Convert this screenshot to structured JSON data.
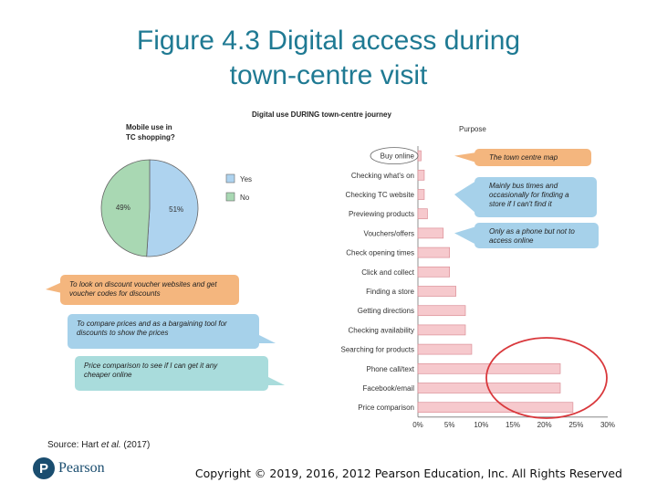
{
  "slide": {
    "title_line1": "Figure 4.3 Digital access during",
    "title_line2": "town-centre visit",
    "source_prefix": "Source: Hart ",
    "source_italic": "et al.",
    "source_suffix": " (2017)",
    "copyright": "Copyright © 2019, 2016, 2012 Pearson Education, Inc. All Rights Reserved",
    "logo_text": "Pearson",
    "logo_mark": "P"
  },
  "colors": {
    "title": "#1f7a93",
    "pie_yes": "#aed3ef",
    "pie_no": "#a9d8b3",
    "bar_fill": "#f6c9cd",
    "bar_stroke": "#dc8f97",
    "callout_orange": "#f4b67e",
    "callout_blue": "#a6d1ea",
    "callout_teal": "#a9dcdc",
    "highlight_circle": "#d9383c"
  },
  "chart_data": [
    {
      "type": "pie",
      "title": "Mobile use in TC shopping?",
      "slices": [
        {
          "label": "Yes",
          "value": 51,
          "display": "51%",
          "color": "#aed3ef"
        },
        {
          "label": "No",
          "value": 49,
          "display": "49%",
          "color": "#a9d8b3"
        }
      ],
      "legend": [
        "Yes",
        "No"
      ],
      "legend_position": "right",
      "callouts": [
        "To look on discount voucher websites and get voucher codes for discounts",
        "To compare prices and as a bargaining tool for discounts to show the prices",
        "Price comparison to see if I can get it any cheaper online"
      ]
    },
    {
      "type": "bar",
      "orientation": "horizontal",
      "title": "Digital use DURING town-centre journey",
      "ylabel": "Purpose",
      "categories": [
        "Buy online",
        "Checking what's on",
        "Checking TC website",
        "Previewing products",
        "Vouchers/offers",
        "Check opening times",
        "Click and collect",
        "Finding a store",
        "Getting directions",
        "Checking availability",
        "Searching for products",
        "Phone call/text",
        "Facebook/email",
        "Price comparison"
      ],
      "values": [
        0.5,
        1,
        1,
        1.5,
        4,
        5,
        5,
        6,
        7.5,
        7.5,
        8.5,
        22.5,
        22.5,
        24.5
      ],
      "xlim": [
        0,
        30
      ],
      "xticks": [
        "0%",
        "5%",
        "10%",
        "15%",
        "20%",
        "25%",
        "30%"
      ],
      "grid": false,
      "callouts": [
        "The town centre map",
        "Mainly bus times and occasionally for finding a store if I can't find it",
        "Only as a phone but not to access online"
      ],
      "highlight": [
        "Phone call/text",
        "Facebook/email",
        "Price comparison"
      ]
    }
  ]
}
